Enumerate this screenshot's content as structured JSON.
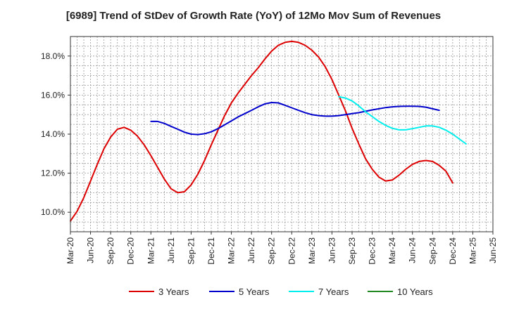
{
  "chart_data": {
    "type": "line",
    "title": "[6989]  Trend of StDev of Growth Rate (YoY) of 12Mo Mov Sum of Revenues",
    "xlabel": "",
    "ylabel": "",
    "ylim": [
      9.0,
      19.0
    ],
    "y_ticks": [
      10.0,
      12.0,
      14.0,
      16.0,
      18.0
    ],
    "y_tick_labels": [
      "10.0%",
      "12.0%",
      "14.0%",
      "16.0%",
      "18.0%"
    ],
    "x_tick_labels": [
      "Mar-20",
      "Jun-20",
      "Sep-20",
      "Dec-20",
      "Mar-21",
      "Jun-21",
      "Sep-21",
      "Dec-21",
      "Mar-22",
      "Jun-22",
      "Sep-22",
      "Dec-22",
      "Mar-23",
      "Jun-23",
      "Sep-23",
      "Dec-23",
      "Mar-24",
      "Jun-24",
      "Sep-24",
      "Dec-24",
      "Mar-25",
      "Jun-25"
    ],
    "grid": true,
    "legend_position": "bottom",
    "series": [
      {
        "name": "3 Years",
        "color": "#dd0000",
        "start_index": 0,
        "values": [
          9.55,
          10.05,
          10.75,
          11.6,
          12.45,
          13.25,
          13.85,
          14.25,
          14.35,
          14.2,
          13.9,
          13.45,
          12.9,
          12.3,
          11.7,
          11.2,
          11.0,
          11.05,
          11.4,
          11.95,
          12.65,
          13.45,
          14.2,
          14.95,
          15.6,
          16.1,
          16.55,
          17.0,
          17.4,
          17.85,
          18.25,
          18.55,
          18.7,
          18.75,
          18.7,
          18.55,
          18.3,
          17.95,
          17.45,
          16.8,
          16.0,
          15.2,
          14.3,
          13.5,
          12.75,
          12.2,
          11.8,
          11.6,
          11.65,
          11.9,
          12.2,
          12.45,
          12.6,
          12.65,
          12.6,
          12.4,
          12.1,
          11.5
        ]
      },
      {
        "name": "5 Years",
        "color": "#0000cc",
        "start_index": 12,
        "values": [
          14.65,
          14.65,
          14.55,
          14.4,
          14.25,
          14.1,
          14.0,
          13.98,
          14.02,
          14.12,
          14.28,
          14.48,
          14.68,
          14.88,
          15.05,
          15.22,
          15.4,
          15.55,
          15.62,
          15.6,
          15.48,
          15.35,
          15.22,
          15.1,
          15.0,
          14.95,
          14.92,
          14.92,
          14.95,
          15.0,
          15.05,
          15.1,
          15.17,
          15.24,
          15.3,
          15.36,
          15.4,
          15.42,
          15.43,
          15.43,
          15.42,
          15.38,
          15.3,
          15.22
        ]
      },
      {
        "name": "7 Years",
        "color": "#00eeee",
        "start_index": 40,
        "values": [
          15.92,
          15.85,
          15.7,
          15.45,
          15.15,
          14.9,
          14.65,
          14.45,
          14.3,
          14.22,
          14.22,
          14.28,
          14.35,
          14.42,
          14.42,
          14.35,
          14.2,
          14.0,
          13.75,
          13.5
        ]
      },
      {
        "name": "10 Years",
        "color": "#228822",
        "start_index": 0,
        "values": []
      }
    ]
  }
}
